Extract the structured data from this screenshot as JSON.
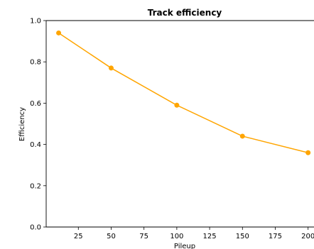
{
  "chart_data": {
    "type": "line",
    "title": "Track efficiency",
    "xlabel": "Pileup",
    "ylabel": "Efficiency",
    "x_ticks": [
      25,
      50,
      75,
      100,
      125,
      150,
      175,
      200
    ],
    "x_tick_labels": [
      "25",
      "50",
      "75",
      "100",
      "125",
      "150",
      "175",
      "200"
    ],
    "y_ticks": [
      0.0,
      0.2,
      0.4,
      0.6,
      0.8,
      1.0
    ],
    "y_tick_labels": [
      "0.0",
      "0.2",
      "0.4",
      "0.6",
      "0.8",
      "1.0"
    ],
    "ylim": [
      0,
      1.0
    ],
    "grid": false,
    "series": [
      {
        "color": "#ffa500",
        "x": [
          10,
          50,
          100,
          150,
          200
        ],
        "y": [
          0.94,
          0.77,
          0.59,
          0.44,
          0.36
        ]
      }
    ]
  }
}
